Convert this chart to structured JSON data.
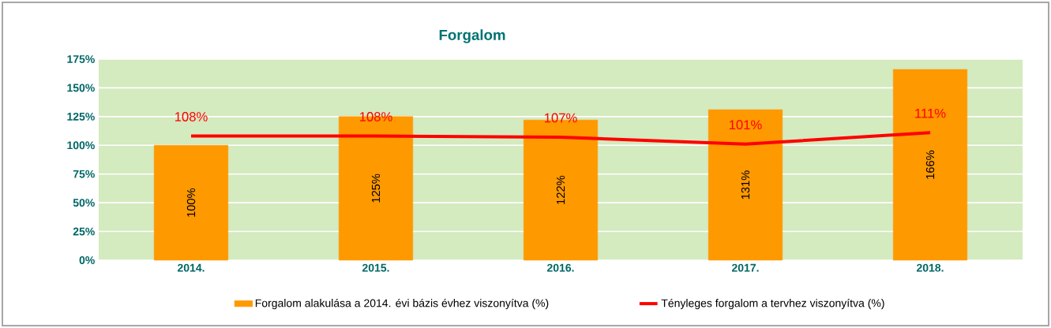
{
  "chart_data": {
    "type": "bar",
    "title": "Forgalom",
    "categories": [
      "2014.",
      "2015.",
      "2016.",
      "2017.",
      "2018."
    ],
    "series": [
      {
        "name": "Forgalom alakulása a 2014. évi bázis évhez viszonyítva (%)",
        "color": "#ff9900",
        "values": [
          100,
          125,
          122,
          131,
          166
        ],
        "value_labels": [
          "100%",
          "125%",
          "122%",
          "131%",
          "166%"
        ]
      },
      {
        "name": "Tényleges forgalom a tervhez viszonyítva (%)",
        "type": "line",
        "color": "#ff0000",
        "values": [
          108,
          108,
          107,
          101,
          111
        ],
        "value_labels": [
          "108%",
          "108%",
          "107%",
          "101%",
          "111%"
        ]
      }
    ],
    "ylim": [
      0,
      175
    ],
    "yticks": [
      {
        "value": 0,
        "label": "0%"
      },
      {
        "value": 25,
        "label": "25%"
      },
      {
        "value": 50,
        "label": "50%"
      },
      {
        "value": 75,
        "label": "75%"
      },
      {
        "value": 100,
        "label": "100%"
      },
      {
        "value": 125,
        "label": "125%"
      },
      {
        "value": 150,
        "label": "150%"
      },
      {
        "value": 175,
        "label": "175%"
      }
    ],
    "grid": "y",
    "legend": "bottom",
    "marker": "none"
  }
}
